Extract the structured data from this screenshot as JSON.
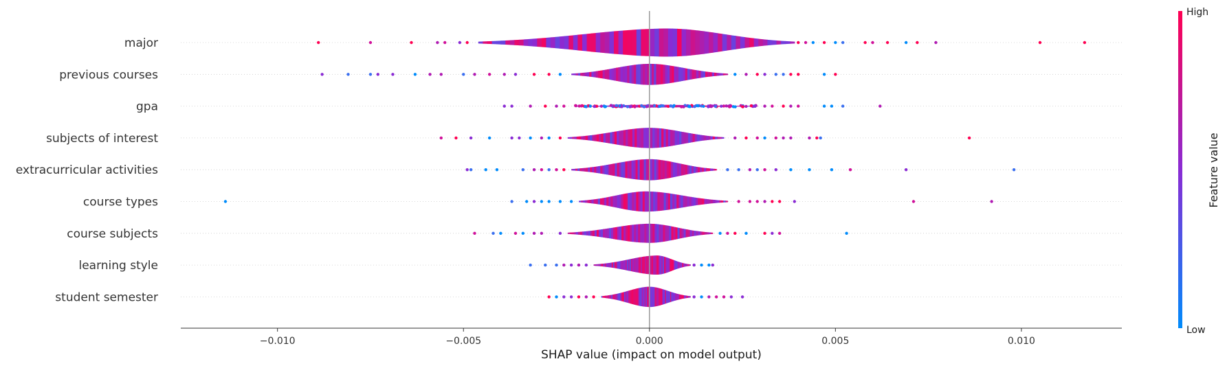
{
  "chart_data": {
    "type": "violin",
    "xlabel": "SHAP value (impact on model output)",
    "xlim": [
      -0.0126,
      0.0127
    ],
    "xticks": [
      -0.01,
      -0.005,
      0.0,
      0.005,
      0.01
    ],
    "xtick_labels": [
      "−0.010",
      "−0.005",
      "0.000",
      "0.005",
      "0.010"
    ],
    "colorbar": {
      "title": "Feature value",
      "high_label": "High",
      "low_label": "Low",
      "high_color": "#ff0052",
      "low_color": "#008bfb"
    },
    "features": [
      {
        "name": "major",
        "core": [
          -0.0046,
          0.0039
        ],
        "peak": 0.0005,
        "max_half": 1.0,
        "points": [
          -0.0089,
          -0.0075,
          -0.0064,
          -0.0057,
          -0.0055,
          -0.0051,
          -0.0049,
          0.004,
          0.0042,
          0.0044,
          0.0047,
          0.005,
          0.0052,
          0.0058,
          0.006,
          0.0064,
          0.0069,
          0.0072,
          0.0077,
          0.0105,
          0.0117
        ],
        "color_pattern": [
          "#ff0052",
          "#d0109a",
          "#ff0052",
          "#b01ab3",
          "#d0109a",
          "#8a2bd4",
          "#ff0052",
          "#ff0052",
          "#d0109a",
          "#008bfb",
          "#ff0052",
          "#008bfb",
          "#3a6ff0",
          "#ff0052",
          "#d0109a",
          "#ff0052",
          "#008bfb",
          "#ff0052",
          "#b01ab3",
          "#ff0052",
          "#ff0052"
        ]
      },
      {
        "name": "previous courses",
        "core": [
          -0.0021,
          0.0021
        ],
        "peak": 0.0,
        "max_half": 0.75,
        "points": [
          -0.0088,
          -0.0081,
          -0.0075,
          -0.0073,
          -0.0069,
          -0.0063,
          -0.0059,
          -0.0056,
          -0.005,
          -0.0047,
          -0.0043,
          -0.0039,
          -0.0036,
          -0.0031,
          -0.0027,
          -0.0024,
          0.0023,
          0.0026,
          0.0029,
          0.0031,
          0.0034,
          0.0036,
          0.0038,
          0.004,
          0.0047,
          0.005
        ]
      },
      {
        "name": "gpa",
        "core": [
          -0.002,
          0.0029
        ],
        "peak": 0.0,
        "max_half": 0.1,
        "points": [
          -0.0039,
          -0.0037,
          -0.0032,
          -0.0028,
          -0.0025,
          -0.0023,
          0.0031,
          0.0033,
          0.0036,
          0.0038,
          0.004,
          0.0047,
          0.0049,
          0.0052,
          0.0062
        ]
      },
      {
        "name": "subjects of interest",
        "core": [
          -0.0022,
          0.002
        ],
        "peak": 0.0,
        "max_half": 0.72,
        "points": [
          -0.0056,
          -0.0052,
          -0.0048,
          -0.0043,
          -0.0037,
          -0.0035,
          -0.0032,
          -0.0029,
          -0.0027,
          -0.0024,
          0.0023,
          0.0026,
          0.0029,
          0.0031,
          0.0034,
          0.0036,
          0.0038,
          0.0043,
          0.0045,
          0.0046,
          0.0086
        ]
      },
      {
        "name": "extracurricular activities",
        "core": [
          -0.0021,
          0.0018
        ],
        "peak": 0.0,
        "max_half": 0.75,
        "points": [
          -0.0049,
          -0.0048,
          -0.0044,
          -0.0041,
          -0.0034,
          -0.0031,
          -0.0029,
          -0.0027,
          -0.0025,
          -0.0023,
          0.0021,
          0.0024,
          0.0027,
          0.0029,
          0.0031,
          0.0034,
          0.0038,
          0.0043,
          0.0049,
          0.0054,
          0.0069,
          0.0098
        ]
      },
      {
        "name": "course types",
        "core": [
          -0.0019,
          0.0021
        ],
        "peak": -0.0001,
        "max_half": 0.72,
        "points": [
          -0.0114,
          -0.0037,
          -0.0033,
          -0.0031,
          -0.0029,
          -0.0027,
          -0.0024,
          -0.0021,
          0.0024,
          0.0027,
          0.0029,
          0.0031,
          0.0033,
          0.0035,
          0.0039,
          0.0071,
          0.0092
        ]
      },
      {
        "name": "course subjects",
        "core": [
          -0.0022,
          0.0017
        ],
        "peak": 0.0,
        "max_half": 0.68,
        "points": [
          -0.0047,
          -0.0042,
          -0.004,
          -0.0036,
          -0.0034,
          -0.0031,
          -0.0029,
          -0.0024,
          0.0019,
          0.0021,
          0.0023,
          0.0026,
          0.0031,
          0.0033,
          0.0035,
          0.0053
        ]
      },
      {
        "name": "learning style",
        "core": [
          -0.0015,
          0.0011
        ],
        "peak": 0.0002,
        "max_half": 0.68,
        "points": [
          -0.0032,
          -0.0028,
          -0.0025,
          -0.0023,
          -0.0021,
          -0.0019,
          -0.0017,
          0.0012,
          0.0014,
          0.0016,
          0.0017
        ]
      },
      {
        "name": "student semester",
        "core": [
          -0.0013,
          0.0011
        ],
        "peak": 0.0,
        "max_half": 0.72,
        "points": [
          -0.0027,
          -0.0025,
          -0.0023,
          -0.0021,
          -0.0019,
          -0.0017,
          -0.0015,
          0.0012,
          0.0014,
          0.0016,
          0.0018,
          0.002,
          0.0022,
          0.0025
        ]
      }
    ]
  }
}
